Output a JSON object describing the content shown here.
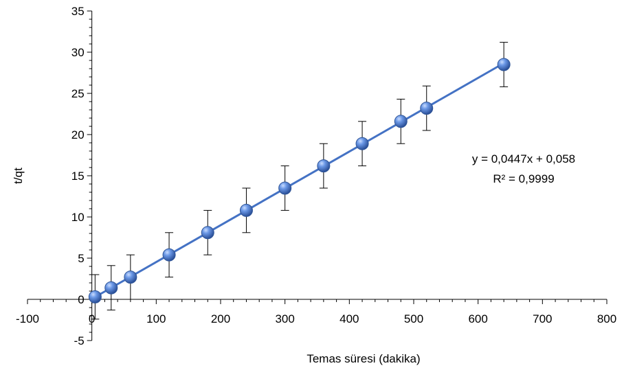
{
  "chart_data": {
    "type": "scatter",
    "xlabel": "Temas süresi (dakika)",
    "ylabel": "t/qt",
    "xlim": [
      -100,
      800
    ],
    "ylim": [
      -5,
      35
    ],
    "x_ticks": [
      -100,
      0,
      100,
      200,
      300,
      400,
      500,
      600,
      700,
      800
    ],
    "y_ticks": [
      -5,
      0,
      5,
      10,
      15,
      20,
      25,
      30,
      35
    ],
    "x_tick_labels": [
      "-100",
      "0",
      "100",
      "200",
      "300",
      "400",
      "500",
      "600",
      "700",
      "800"
    ],
    "y_tick_labels": [
      "-5",
      "0",
      "5",
      "10",
      "15",
      "20",
      "25",
      "30",
      "35"
    ],
    "grid": false,
    "legend": "none",
    "series": [
      {
        "x": [
          5,
          30,
          60,
          120,
          180,
          240,
          300,
          360,
          420,
          480,
          520,
          640
        ],
        "y": [
          0.3,
          1.4,
          2.7,
          5.4,
          8.1,
          10.8,
          13.5,
          16.2,
          18.9,
          21.6,
          23.2,
          28.5
        ],
        "error": 2.7,
        "color": "#4472C4"
      }
    ],
    "trendline": {
      "type": "linear",
      "slope": 0.0447,
      "intercept": 0.058,
      "x_range": [
        5,
        640
      ],
      "color": "#4472C4",
      "equation": "y = 0,0447x + 0,058",
      "r_squared": "R² = 0,9999"
    }
  }
}
